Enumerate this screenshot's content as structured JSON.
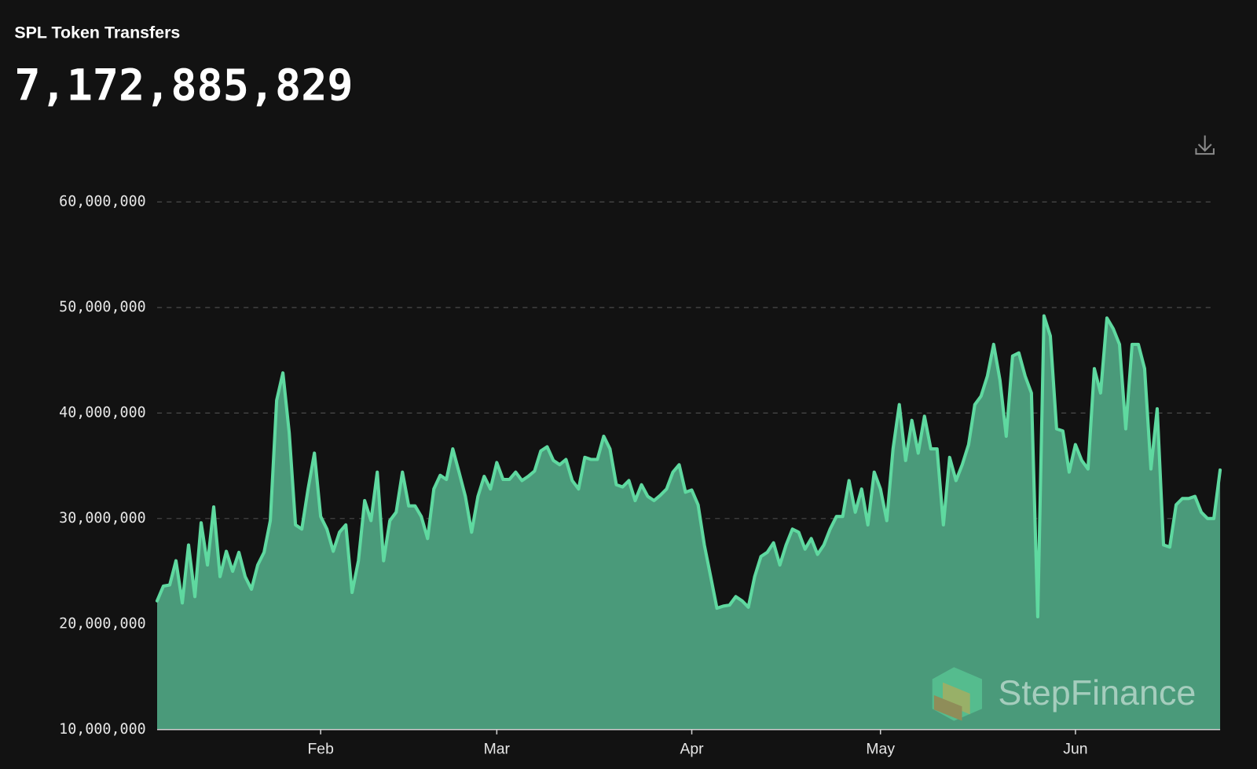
{
  "chart_data": {
    "type": "area",
    "title": "SPL Token Transfers",
    "total": "7,172,885,829",
    "watermark": "StepFinance",
    "line_color": "#5fd9a0",
    "fill_color": "#4a9a7a",
    "grid": true,
    "ylim": [
      10000000,
      60000000
    ],
    "yticks": [
      {
        "value": 10000000,
        "label": "10,000,000"
      },
      {
        "value": 20000000,
        "label": "20,000,000"
      },
      {
        "value": 30000000,
        "label": "30,000,000"
      },
      {
        "value": 40000000,
        "label": "40,000,000"
      },
      {
        "value": 50000000,
        "label": "50,000,000"
      },
      {
        "value": 60000000,
        "label": "60,000,000"
      }
    ],
    "categories": [
      null,
      null,
      null,
      null,
      null,
      null,
      null,
      null,
      null,
      null,
      null,
      null,
      null,
      null,
      null,
      null,
      null,
      null,
      null,
      null,
      null,
      null,
      null,
      null,
      null,
      null,
      "Feb",
      null,
      null,
      null,
      null,
      null,
      null,
      null,
      null,
      null,
      null,
      null,
      null,
      null,
      null,
      null,
      null,
      null,
      null,
      null,
      null,
      null,
      null,
      null,
      null,
      null,
      null,
      null,
      "Mar",
      null,
      null,
      null,
      null,
      null,
      null,
      null,
      null,
      null,
      null,
      null,
      null,
      null,
      null,
      null,
      null,
      null,
      null,
      null,
      null,
      null,
      null,
      null,
      null,
      null,
      null,
      null,
      null,
      null,
      null,
      "Apr",
      null,
      null,
      null,
      null,
      null,
      null,
      null,
      null,
      null,
      null,
      null,
      null,
      null,
      null,
      null,
      null,
      null,
      null,
      null,
      null,
      null,
      null,
      null,
      null,
      null,
      null,
      null,
      null,
      null,
      "May",
      null,
      null,
      null,
      null,
      null,
      null,
      null,
      null,
      null,
      null,
      null,
      null,
      null,
      null,
      null,
      null,
      null,
      null,
      null,
      null,
      null,
      null,
      null,
      null,
      null,
      null,
      null,
      null,
      null,
      null,
      "Jun",
      null,
      null,
      null,
      null,
      null,
      null,
      null,
      null,
      null,
      null,
      null,
      null,
      null,
      null,
      null,
      null,
      null,
      null,
      null,
      null,
      null,
      null,
      null
    ],
    "values": [
      22200000,
      23600000,
      23700000,
      26000000,
      22000000,
      27500000,
      22600000,
      29600000,
      25600000,
      31100000,
      24500000,
      26900000,
      25000000,
      26800000,
      24500000,
      23300000,
      25600000,
      26800000,
      29800000,
      41200000,
      43800000,
      38100000,
      29400000,
      29000000,
      32800000,
      36200000,
      30200000,
      29000000,
      26900000,
      28700000,
      29400000,
      23000000,
      26000000,
      31700000,
      29800000,
      34400000,
      26000000,
      29800000,
      30600000,
      34400000,
      31200000,
      31200000,
      30200000,
      28100000,
      32800000,
      34100000,
      33700000,
      36600000,
      34400000,
      32100000,
      28700000,
      32100000,
      34000000,
      32800000,
      35300000,
      33700000,
      33700000,
      34400000,
      33600000,
      34000000,
      34500000,
      36400000,
      36800000,
      35500000,
      35100000,
      35600000,
      33600000,
      32800000,
      35800000,
      35600000,
      35600000,
      37800000,
      36600000,
      33200000,
      33000000,
      33600000,
      31700000,
      33200000,
      32100000,
      31700000,
      32200000,
      32800000,
      34400000,
      35100000,
      32500000,
      32700000,
      31300000,
      27500000,
      24500000,
      21500000,
      21700000,
      21800000,
      22600000,
      22200000,
      21600000,
      24500000,
      26400000,
      26800000,
      27700000,
      25600000,
      27500000,
      29000000,
      28700000,
      27100000,
      28100000,
      26600000,
      27500000,
      29000000,
      30200000,
      30200000,
      33600000,
      30600000,
      32800000,
      29400000,
      34400000,
      32800000,
      29800000,
      36600000,
      40800000,
      35500000,
      39300000,
      36200000,
      39700000,
      36600000,
      36600000,
      29400000,
      35800000,
      33600000,
      35100000,
      37000000,
      40800000,
      41600000,
      43500000,
      46500000,
      43100000,
      37800000,
      45400000,
      45700000,
      43500000,
      41900000,
      20700000,
      49200000,
      47300000,
      38500000,
      38300000,
      34400000,
      37000000,
      35500000,
      34700000,
      44200000,
      41900000,
      49000000,
      48000000,
      46500000,
      38500000,
      46500000,
      46500000,
      44200000,
      34700000,
      40400000,
      27500000,
      27300000,
      31300000,
      31900000,
      31900000,
      32100000,
      30600000,
      30000000,
      30000000,
      34600000
    ]
  }
}
